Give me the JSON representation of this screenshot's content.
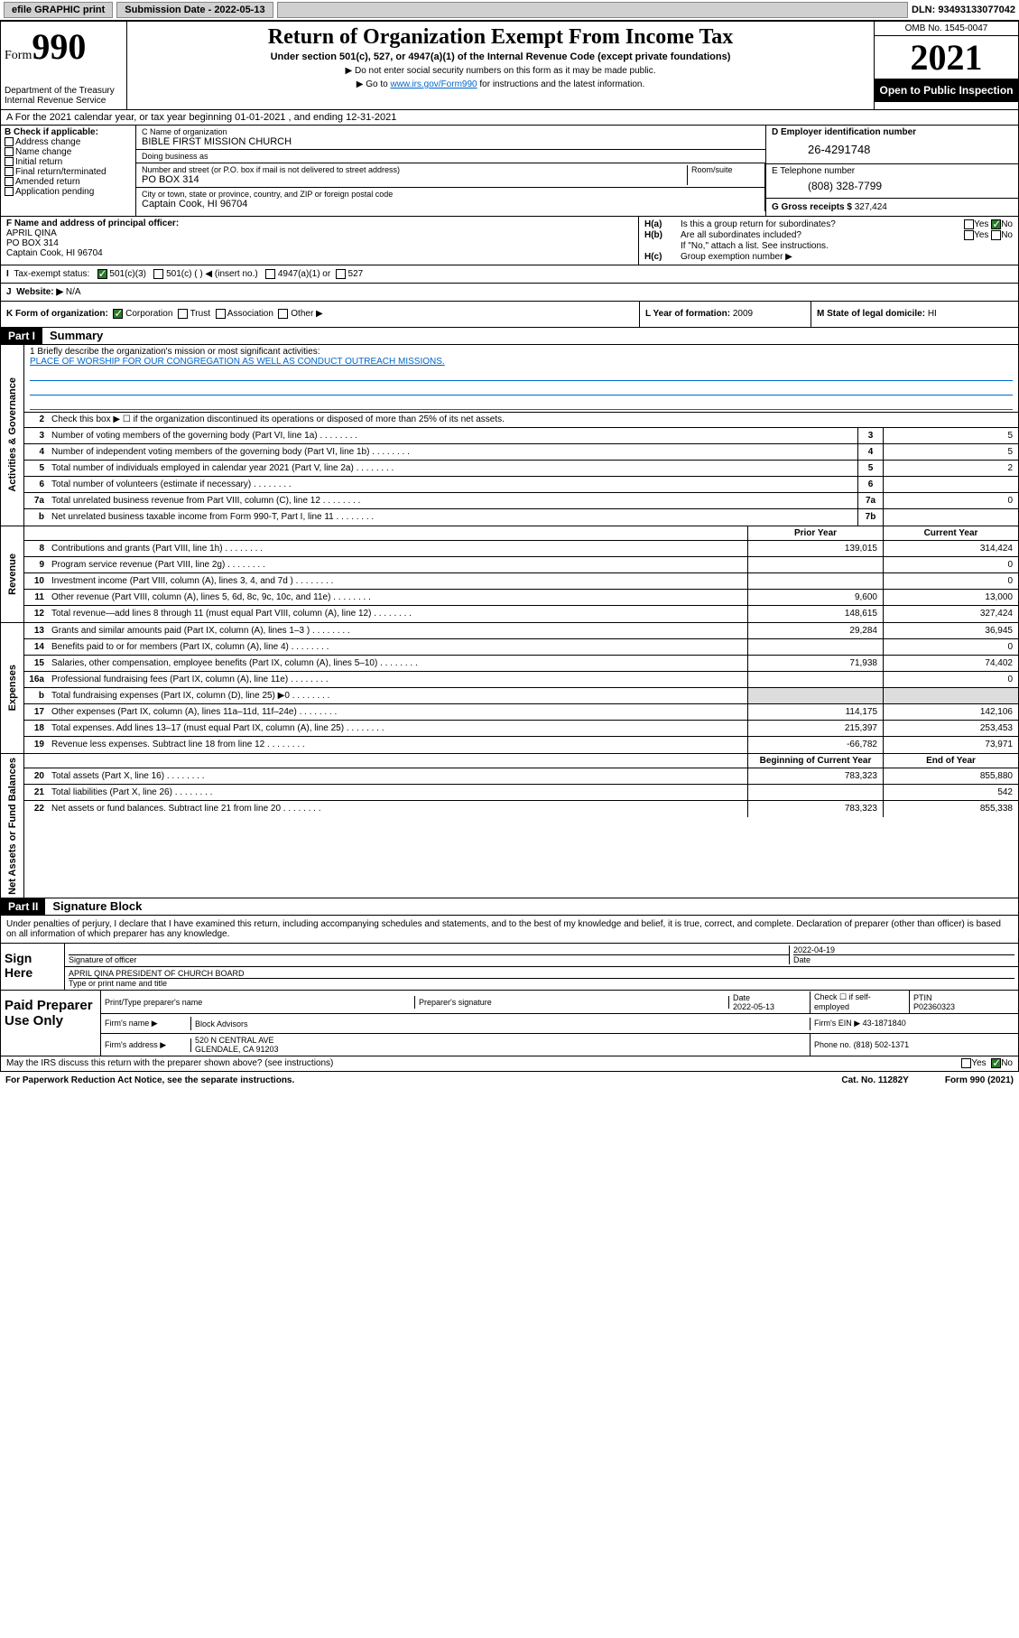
{
  "topbar": {
    "efile": "efile GRAPHIC print",
    "subdate_lbl": "Submission Date - 2022-05-13",
    "dln": "DLN: 93493133077042"
  },
  "header": {
    "form_prefix": "Form",
    "form_num": "990",
    "dept": "Department of the Treasury Internal Revenue Service",
    "title": "Return of Organization Exempt From Income Tax",
    "sub": "Under section 501(c), 527, or 4947(a)(1) of the Internal Revenue Code (except private foundations)",
    "note1": "▶ Do not enter social security numbers on this form as it may be made public.",
    "note2_pre": "▶ Go to ",
    "note2_link": "www.irs.gov/Form990",
    "note2_post": " for instructions and the latest information.",
    "omb": "OMB No. 1545-0047",
    "year": "2021",
    "open": "Open to Public Inspection"
  },
  "row_a": "A For the 2021 calendar year, or tax year beginning 01-01-2021  , and ending 12-31-2021",
  "b": {
    "lbl": "B Check if applicable:",
    "items": [
      "Address change",
      "Name change",
      "Initial return",
      "Final return/terminated",
      "Amended return",
      "Application pending"
    ]
  },
  "c": {
    "name_lbl": "C Name of organization",
    "name": "BIBLE FIRST MISSION CHURCH",
    "dba_lbl": "Doing business as",
    "street_lbl": "Number and street (or P.O. box if mail is not delivered to street address)",
    "room_lbl": "Room/suite",
    "street": "PO BOX 314",
    "city_lbl": "City or town, state or province, country, and ZIP or foreign postal code",
    "city": "Captain Cook, HI  96704"
  },
  "d": {
    "ein_lbl": "D Employer identification number",
    "ein": "26-4291748",
    "tel_lbl": "E Telephone number",
    "tel": "(808) 328-7799",
    "gross_lbl": "G Gross receipts $",
    "gross": "327,424"
  },
  "f": {
    "lbl": "F Name and address of principal officer:",
    "name": "APRIL QINA",
    "addr1": "PO BOX 314",
    "addr2": "Captain Cook, HI  96704"
  },
  "h": {
    "ha_lbl": "H(a)",
    "ha_txt": "Is this a group return for subordinates?",
    "hb_lbl": "H(b)",
    "hb_txt": "Are all subordinates included?",
    "hb_note": "If \"No,\" attach a list. See instructions.",
    "hc_lbl": "H(c)",
    "hc_txt": "Group exemption number ▶",
    "yes": "Yes",
    "no": "No"
  },
  "i": {
    "lbl": "I",
    "txt": "Tax-exempt status:",
    "opt1": "501(c)(3)",
    "opt2": "501(c) (  ) ◀ (insert no.)",
    "opt3": "4947(a)(1) or",
    "opt4": "527"
  },
  "j": {
    "lbl": "J",
    "txt": "Website: ▶",
    "val": "N/A"
  },
  "k": {
    "lbl": "K Form of organization:",
    "opts": [
      "Corporation",
      "Trust",
      "Association",
      "Other ▶"
    ],
    "l_lbl": "L Year of formation:",
    "l_val": "2009",
    "m_lbl": "M State of legal domicile:",
    "m_val": "HI"
  },
  "part1": {
    "hdr": "Part I",
    "title": "Summary"
  },
  "summary": {
    "briefly_lbl": "1  Briefly describe the organization's mission or most significant activities:",
    "mission": "PLACE OF WORSHIP FOR OUR CONGREGATION AS WELL AS CONDUCT OUTREACH MISSIONS.",
    "line2": "Check this box ▶ ☐  if the organization discontinued its operations or disposed of more than 25% of its net assets.",
    "side_gov": "Activities & Governance",
    "side_rev": "Revenue",
    "side_exp": "Expenses",
    "side_net": "Net Assets or Fund Balances",
    "prior_hdr": "Prior Year",
    "curr_hdr": "Current Year",
    "beg_hdr": "Beginning of Current Year",
    "end_hdr": "End of Year",
    "lines_gov": [
      {
        "n": "3",
        "d": "Number of voting members of the governing body (Part VI, line 1a)",
        "box": "3",
        "v": "5"
      },
      {
        "n": "4",
        "d": "Number of independent voting members of the governing body (Part VI, line 1b)",
        "box": "4",
        "v": "5"
      },
      {
        "n": "5",
        "d": "Total number of individuals employed in calendar year 2021 (Part V, line 2a)",
        "box": "5",
        "v": "2"
      },
      {
        "n": "6",
        "d": "Total number of volunteers (estimate if necessary)",
        "box": "6",
        "v": ""
      },
      {
        "n": "7a",
        "d": "Total unrelated business revenue from Part VIII, column (C), line 12",
        "box": "7a",
        "v": "0"
      },
      {
        "n": "b",
        "d": "Net unrelated business taxable income from Form 990-T, Part I, line 11",
        "box": "7b",
        "v": ""
      }
    ],
    "lines_rev": [
      {
        "n": "8",
        "d": "Contributions and grants (Part VIII, line 1h)",
        "p": "139,015",
        "c": "314,424"
      },
      {
        "n": "9",
        "d": "Program service revenue (Part VIII, line 2g)",
        "p": "",
        "c": "0"
      },
      {
        "n": "10",
        "d": "Investment income (Part VIII, column (A), lines 3, 4, and 7d )",
        "p": "",
        "c": "0"
      },
      {
        "n": "11",
        "d": "Other revenue (Part VIII, column (A), lines 5, 6d, 8c, 9c, 10c, and 11e)",
        "p": "9,600",
        "c": "13,000"
      },
      {
        "n": "12",
        "d": "Total revenue—add lines 8 through 11 (must equal Part VIII, column (A), line 12)",
        "p": "148,615",
        "c": "327,424"
      }
    ],
    "lines_exp": [
      {
        "n": "13",
        "d": "Grants and similar amounts paid (Part IX, column (A), lines 1–3 )",
        "p": "29,284",
        "c": "36,945"
      },
      {
        "n": "14",
        "d": "Benefits paid to or for members (Part IX, column (A), line 4)",
        "p": "",
        "c": "0"
      },
      {
        "n": "15",
        "d": "Salaries, other compensation, employee benefits (Part IX, column (A), lines 5–10)",
        "p": "71,938",
        "c": "74,402"
      },
      {
        "n": "16a",
        "d": "Professional fundraising fees (Part IX, column (A), line 11e)",
        "p": "",
        "c": "0"
      },
      {
        "n": "b",
        "d": "Total fundraising expenses (Part IX, column (D), line 25) ▶0",
        "p": "shade",
        "c": "shade"
      },
      {
        "n": "17",
        "d": "Other expenses (Part IX, column (A), lines 11a–11d, 11f–24e)",
        "p": "114,175",
        "c": "142,106"
      },
      {
        "n": "18",
        "d": "Total expenses. Add lines 13–17 (must equal Part IX, column (A), line 25)",
        "p": "215,397",
        "c": "253,453"
      },
      {
        "n": "19",
        "d": "Revenue less expenses. Subtract line 18 from line 12",
        "p": "-66,782",
        "c": "73,971"
      }
    ],
    "lines_net": [
      {
        "n": "20",
        "d": "Total assets (Part X, line 16)",
        "p": "783,323",
        "c": "855,880"
      },
      {
        "n": "21",
        "d": "Total liabilities (Part X, line 26)",
        "p": "",
        "c": "542"
      },
      {
        "n": "22",
        "d": "Net assets or fund balances. Subtract line 21 from line 20",
        "p": "783,323",
        "c": "855,338"
      }
    ]
  },
  "part2": {
    "hdr": "Part II",
    "title": "Signature Block"
  },
  "sig": {
    "decl": "Under penalties of perjury, I declare that I have examined this return, including accompanying schedules and statements, and to the best of my knowledge and belief, it is true, correct, and complete. Declaration of preparer (other than officer) is based on all information of which preparer has any knowledge.",
    "sign_here": "Sign Here",
    "sig_lbl": "Signature of officer",
    "date_lbl": "Date",
    "date_val": "2022-04-19",
    "name": "APRIL QINA  PRESIDENT OF CHURCH BOARD",
    "name_lbl": "Type or print name and title"
  },
  "pp": {
    "lbl": "Paid Preparer Use Only",
    "c1": "Print/Type preparer's name",
    "c2": "Preparer's signature",
    "c3": "Date",
    "c3v": "2022-05-13",
    "c4": "Check ☐ if self-employed",
    "c5": "PTIN",
    "c5v": "P02360323",
    "firm_lbl": "Firm's name   ▶",
    "firm": "Block Advisors",
    "ein_lbl": "Firm's EIN ▶",
    "ein": "43-1871840",
    "addr_lbl": "Firm's address ▶",
    "addr1": "520 N CENTRAL AVE",
    "addr2": "GLENDALE, CA  91203",
    "ph_lbl": "Phone no.",
    "ph": "(818) 502-1371"
  },
  "may": "May the IRS discuss this return with the preparer shown above? (see instructions)",
  "footer": {
    "l": "For Paperwork Reduction Act Notice, see the separate instructions.",
    "c": "Cat. No. 11282Y",
    "r": "Form 990 (2021)"
  }
}
